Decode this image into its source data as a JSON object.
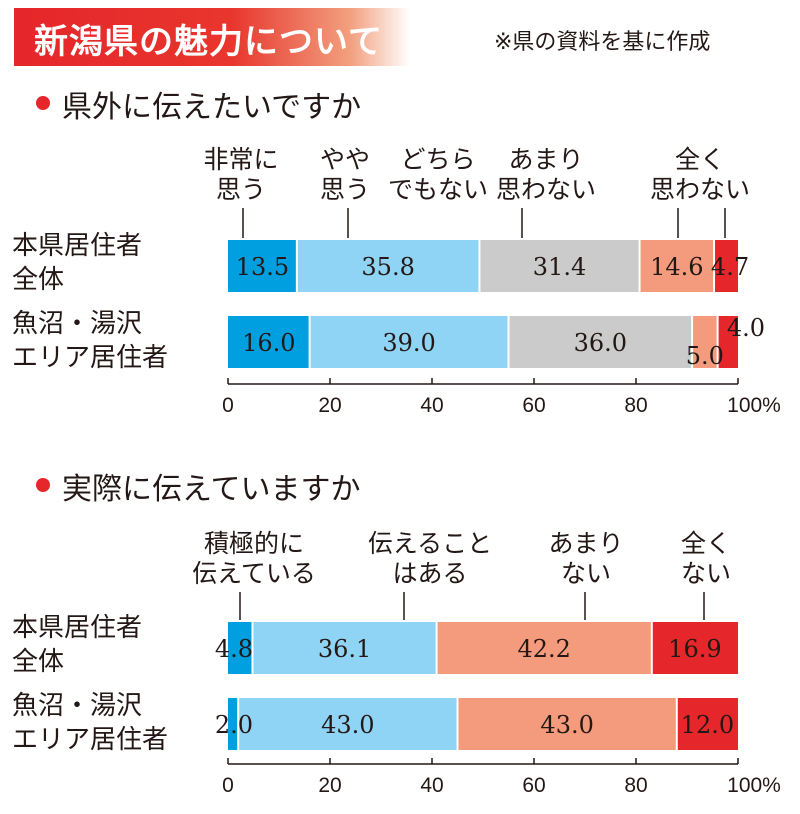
{
  "title": "新潟県の魅力について",
  "source_note": "※県の資料を基に作成",
  "colors": {
    "accent_red": "#e5262b",
    "strongly_agree": "#00a0e0",
    "somewhat_agree": "#8fd3f5",
    "neutral": "#cbcbcb",
    "not_much": "#f39b7c",
    "not_at_all": "#e5262b"
  },
  "chart_data": [
    {
      "type": "bar",
      "orientation": "horizontal-stacked",
      "heading": "県外に伝えたいですか",
      "categories": [
        [
          "本県居住者",
          "全体"
        ],
        [
          "魚沼・湯沢",
          "エリア居住者"
        ]
      ],
      "series": [
        {
          "name": "非常に思う",
          "label_lines": [
            "非常に",
            "思う"
          ],
          "color": "#00a0e0",
          "values": [
            13.5,
            16.0
          ]
        },
        {
          "name": "やや思う",
          "label_lines": [
            "やや",
            "思う"
          ],
          "color": "#8fd3f5",
          "values": [
            35.8,
            39.0
          ]
        },
        {
          "name": "どちらでもない",
          "label_lines": [
            "どちら",
            "でもない"
          ],
          "color": "#cbcbcb",
          "values": [
            31.4,
            36.0
          ]
        },
        {
          "name": "あまり思わない",
          "label_lines": [
            "あまり",
            "思わない"
          ],
          "color": "#f39b7c",
          "values": [
            14.6,
            5.0
          ]
        },
        {
          "name": "全く思わない",
          "label_lines": [
            "全く",
            "思わない"
          ],
          "color": "#e5262b",
          "values": [
            4.7,
            4.0
          ]
        }
      ],
      "value_labels": [
        [
          "13.5",
          "35.8",
          "31.4",
          "14.6",
          "4.7"
        ],
        [
          "16.0",
          "39.0",
          "36.0",
          "5.0",
          "4.0"
        ]
      ],
      "xlim": [
        0,
        100
      ],
      "xticks": [
        "0",
        "20",
        "40",
        "60",
        "80",
        "100%"
      ],
      "grid": false
    },
    {
      "type": "bar",
      "orientation": "horizontal-stacked",
      "heading": "実際に伝えていますか",
      "categories": [
        [
          "本県居住者",
          "全体"
        ],
        [
          "魚沼・湯沢",
          "エリア居住者"
        ]
      ],
      "series": [
        {
          "name": "積極的に伝えている",
          "label_lines": [
            "積極的に",
            "伝えている"
          ],
          "color": "#00a0e0",
          "values": [
            4.8,
            2.0
          ]
        },
        {
          "name": "伝えることはある",
          "label_lines": [
            "伝えること",
            "はある"
          ],
          "color": "#8fd3f5",
          "values": [
            36.1,
            43.0
          ]
        },
        {
          "name": "あまりない",
          "label_lines": [
            "あまり",
            "ない"
          ],
          "color": "#f39b7c",
          "values": [
            42.2,
            43.0
          ]
        },
        {
          "name": "全くない",
          "label_lines": [
            "全く",
            "ない"
          ],
          "color": "#e5262b",
          "values": [
            16.9,
            12.0
          ]
        }
      ],
      "value_labels": [
        [
          "4.8",
          "36.1",
          "42.2",
          "16.9"
        ],
        [
          "2.0",
          "43.0",
          "43.0",
          "12.0"
        ]
      ],
      "xlim": [
        0,
        100
      ],
      "xticks": [
        "0",
        "20",
        "40",
        "60",
        "80",
        "100%"
      ],
      "grid": false
    }
  ]
}
